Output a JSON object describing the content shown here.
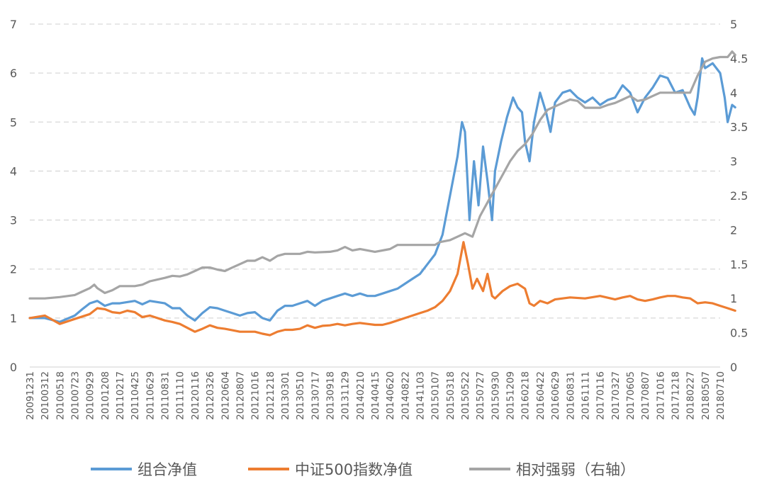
{
  "chart_data": {
    "type": "line",
    "title": "",
    "xlabel": "",
    "ylabel": "",
    "y_left": {
      "min": 0,
      "max": 7,
      "ticks": [
        "0",
        "1",
        "2",
        "3",
        "4",
        "5",
        "6",
        "7"
      ]
    },
    "y_right": {
      "min": 0,
      "max": 5,
      "ticks": [
        "0",
        "0.5",
        "1",
        "1.5",
        "2",
        "2.5",
        "3",
        "3.5",
        "4",
        "4.5",
        "5"
      ]
    },
    "grid": true,
    "legend_position": "bottom",
    "x_tick_labels": [
      "20091231",
      "20100312",
      "20100518",
      "20100723",
      "20100929",
      "20101208",
      "20110217",
      "20110425",
      "20110629",
      "20110831",
      "20111110",
      "20120116",
      "20120326",
      "20120604",
      "20120807",
      "20121016",
      "20121218",
      "20130301",
      "20130510",
      "20130717",
      "20130918",
      "20131129",
      "20140210",
      "20140415",
      "20140620",
      "20140822",
      "20141103",
      "20150107",
      "20150318",
      "20150522",
      "20150727",
      "20150930",
      "20151209",
      "20160218",
      "20160422",
      "20160629",
      "20160831",
      "20161111",
      "20170116",
      "20170327",
      "20170605",
      "20170807",
      "20171016",
      "20171218",
      "20180227",
      "20180507",
      "20180710"
    ],
    "series": [
      {
        "name": "组合净值",
        "axis": "left",
        "color": "#5b9bd5",
        "points": [
          [
            0,
            1.0
          ],
          [
            1,
            1.0
          ],
          [
            2,
            0.92
          ],
          [
            3,
            1.05
          ],
          [
            3.5,
            1.18
          ],
          [
            4,
            1.3
          ],
          [
            4.5,
            1.35
          ],
          [
            5,
            1.25
          ],
          [
            5.5,
            1.3
          ],
          [
            6,
            1.3
          ],
          [
            7,
            1.35
          ],
          [
            7.5,
            1.28
          ],
          [
            8,
            1.35
          ],
          [
            9,
            1.3
          ],
          [
            9.5,
            1.2
          ],
          [
            10,
            1.2
          ],
          [
            10.5,
            1.05
          ],
          [
            11,
            0.95
          ],
          [
            11.5,
            1.1
          ],
          [
            12,
            1.22
          ],
          [
            12.5,
            1.2
          ],
          [
            13,
            1.15
          ],
          [
            13.5,
            1.1
          ],
          [
            14,
            1.05
          ],
          [
            14.5,
            1.1
          ],
          [
            15,
            1.12
          ],
          [
            15.5,
            1.0
          ],
          [
            16,
            0.95
          ],
          [
            16.5,
            1.15
          ],
          [
            17,
            1.25
          ],
          [
            17.5,
            1.25
          ],
          [
            18,
            1.3
          ],
          [
            18.5,
            1.35
          ],
          [
            19,
            1.25
          ],
          [
            19.5,
            1.35
          ],
          [
            20,
            1.4
          ],
          [
            20.5,
            1.45
          ],
          [
            21,
            1.5
          ],
          [
            21.5,
            1.45
          ],
          [
            22,
            1.5
          ],
          [
            22.5,
            1.45
          ],
          [
            23,
            1.45
          ],
          [
            23.5,
            1.5
          ],
          [
            24,
            1.55
          ],
          [
            24.5,
            1.6
          ],
          [
            25,
            1.7
          ],
          [
            25.5,
            1.8
          ],
          [
            26,
            1.9
          ],
          [
            26.5,
            2.1
          ],
          [
            27,
            2.3
          ],
          [
            27.5,
            2.7
          ],
          [
            28,
            3.5
          ],
          [
            28.5,
            4.3
          ],
          [
            28.8,
            5.0
          ],
          [
            29,
            4.8
          ],
          [
            29.3,
            3.0
          ],
          [
            29.6,
            4.2
          ],
          [
            29.9,
            3.3
          ],
          [
            30.2,
            4.5
          ],
          [
            30.5,
            3.8
          ],
          [
            30.8,
            3.0
          ],
          [
            31,
            4.0
          ],
          [
            31.4,
            4.6
          ],
          [
            31.8,
            5.1
          ],
          [
            32.2,
            5.5
          ],
          [
            32.5,
            5.3
          ],
          [
            32.8,
            5.2
          ],
          [
            33,
            4.6
          ],
          [
            33.3,
            4.2
          ],
          [
            33.6,
            5.0
          ],
          [
            34,
            5.6
          ],
          [
            34.4,
            5.2
          ],
          [
            34.7,
            4.8
          ],
          [
            35,
            5.4
          ],
          [
            35.5,
            5.6
          ],
          [
            36,
            5.65
          ],
          [
            36.5,
            5.5
          ],
          [
            37,
            5.4
          ],
          [
            37.5,
            5.5
          ],
          [
            38,
            5.35
          ],
          [
            38.5,
            5.45
          ],
          [
            39,
            5.5
          ],
          [
            39.5,
            5.75
          ],
          [
            40,
            5.6
          ],
          [
            40.5,
            5.2
          ],
          [
            41,
            5.5
          ],
          [
            41.5,
            5.7
          ],
          [
            42,
            5.95
          ],
          [
            42.5,
            5.9
          ],
          [
            43,
            5.6
          ],
          [
            43.5,
            5.65
          ],
          [
            44,
            5.3
          ],
          [
            44.3,
            5.15
          ],
          [
            44.5,
            5.5
          ],
          [
            44.8,
            6.3
          ],
          [
            45,
            6.1
          ],
          [
            45.5,
            6.2
          ],
          [
            46,
            6.0
          ],
          [
            46.3,
            5.5
          ],
          [
            46.5,
            5.0
          ],
          [
            46.8,
            5.35
          ],
          [
            47,
            5.3
          ]
        ]
      },
      {
        "name": "中证500指数净值",
        "axis": "left",
        "color": "#ed7d31",
        "points": [
          [
            0,
            1.0
          ],
          [
            1,
            1.05
          ],
          [
            2,
            0.88
          ],
          [
            3,
            0.98
          ],
          [
            4,
            1.08
          ],
          [
            4.5,
            1.2
          ],
          [
            5,
            1.18
          ],
          [
            5.5,
            1.12
          ],
          [
            6,
            1.1
          ],
          [
            6.5,
            1.15
          ],
          [
            7,
            1.12
          ],
          [
            7.5,
            1.02
          ],
          [
            8,
            1.05
          ],
          [
            9,
            0.95
          ],
          [
            9.5,
            0.92
          ],
          [
            10,
            0.88
          ],
          [
            10.5,
            0.8
          ],
          [
            11,
            0.72
          ],
          [
            11.5,
            0.78
          ],
          [
            12,
            0.85
          ],
          [
            12.5,
            0.8
          ],
          [
            13,
            0.78
          ],
          [
            13.5,
            0.75
          ],
          [
            14,
            0.72
          ],
          [
            14.5,
            0.72
          ],
          [
            15,
            0.72
          ],
          [
            15.5,
            0.68
          ],
          [
            16,
            0.65
          ],
          [
            16.5,
            0.72
          ],
          [
            17,
            0.76
          ],
          [
            17.5,
            0.76
          ],
          [
            18,
            0.78
          ],
          [
            18.5,
            0.85
          ],
          [
            19,
            0.8
          ],
          [
            19.5,
            0.84
          ],
          [
            20,
            0.85
          ],
          [
            20.5,
            0.88
          ],
          [
            21,
            0.85
          ],
          [
            21.5,
            0.88
          ],
          [
            22,
            0.9
          ],
          [
            22.5,
            0.88
          ],
          [
            23,
            0.86
          ],
          [
            23.5,
            0.86
          ],
          [
            24,
            0.9
          ],
          [
            24.5,
            0.95
          ],
          [
            25,
            1.0
          ],
          [
            25.5,
            1.05
          ],
          [
            26,
            1.1
          ],
          [
            26.5,
            1.15
          ],
          [
            27,
            1.22
          ],
          [
            27.5,
            1.35
          ],
          [
            28,
            1.55
          ],
          [
            28.5,
            1.9
          ],
          [
            28.9,
            2.55
          ],
          [
            29.2,
            2.1
          ],
          [
            29.5,
            1.6
          ],
          [
            29.8,
            1.8
          ],
          [
            30.2,
            1.55
          ],
          [
            30.5,
            1.9
          ],
          [
            30.8,
            1.45
          ],
          [
            31,
            1.4
          ],
          [
            31.5,
            1.55
          ],
          [
            32,
            1.65
          ],
          [
            32.5,
            1.7
          ],
          [
            33,
            1.6
          ],
          [
            33.3,
            1.3
          ],
          [
            33.6,
            1.25
          ],
          [
            34,
            1.35
          ],
          [
            34.5,
            1.3
          ],
          [
            35,
            1.38
          ],
          [
            36,
            1.42
          ],
          [
            37,
            1.4
          ],
          [
            38,
            1.45
          ],
          [
            39,
            1.38
          ],
          [
            39.5,
            1.42
          ],
          [
            40,
            1.45
          ],
          [
            40.5,
            1.38
          ],
          [
            41,
            1.35
          ],
          [
            41.5,
            1.38
          ],
          [
            42,
            1.42
          ],
          [
            42.5,
            1.45
          ],
          [
            43,
            1.45
          ],
          [
            43.5,
            1.42
          ],
          [
            44,
            1.4
          ],
          [
            44.5,
            1.3
          ],
          [
            45,
            1.32
          ],
          [
            45.5,
            1.3
          ],
          [
            46,
            1.25
          ],
          [
            46.5,
            1.2
          ],
          [
            47,
            1.15
          ]
        ]
      },
      {
        "name": "相对强弱（右轴）",
        "axis": "right",
        "color": "#a5a5a5",
        "points": [
          [
            0,
            1.0
          ],
          [
            1,
            1.0
          ],
          [
            2,
            1.02
          ],
          [
            3,
            1.05
          ],
          [
            3.5,
            1.1
          ],
          [
            4,
            1.15
          ],
          [
            4.3,
            1.2
          ],
          [
            4.5,
            1.15
          ],
          [
            5,
            1.08
          ],
          [
            5.5,
            1.12
          ],
          [
            6,
            1.18
          ],
          [
            7,
            1.18
          ],
          [
            7.5,
            1.2
          ],
          [
            8,
            1.25
          ],
          [
            9,
            1.3
          ],
          [
            9.5,
            1.33
          ],
          [
            10,
            1.32
          ],
          [
            10.5,
            1.35
          ],
          [
            11,
            1.4
          ],
          [
            11.5,
            1.45
          ],
          [
            12,
            1.45
          ],
          [
            12.5,
            1.42
          ],
          [
            13,
            1.4
          ],
          [
            13.5,
            1.45
          ],
          [
            14,
            1.5
          ],
          [
            14.5,
            1.55
          ],
          [
            15,
            1.55
          ],
          [
            15.5,
            1.6
          ],
          [
            16,
            1.55
          ],
          [
            16.5,
            1.62
          ],
          [
            17,
            1.65
          ],
          [
            18,
            1.65
          ],
          [
            18.5,
            1.68
          ],
          [
            19,
            1.67
          ],
          [
            20,
            1.68
          ],
          [
            20.5,
            1.7
          ],
          [
            21,
            1.75
          ],
          [
            21.5,
            1.7
          ],
          [
            22,
            1.72
          ],
          [
            22.5,
            1.7
          ],
          [
            23,
            1.68
          ],
          [
            24,
            1.72
          ],
          [
            24.5,
            1.78
          ],
          [
            25,
            1.78
          ],
          [
            26,
            1.78
          ],
          [
            27,
            1.78
          ],
          [
            27.3,
            1.82
          ],
          [
            28,
            1.85
          ],
          [
            28.5,
            1.9
          ],
          [
            29,
            1.95
          ],
          [
            29.5,
            1.9
          ],
          [
            30,
            2.2
          ],
          [
            30.5,
            2.4
          ],
          [
            31,
            2.6
          ],
          [
            31.5,
            2.8
          ],
          [
            32,
            3.0
          ],
          [
            32.5,
            3.15
          ],
          [
            33,
            3.25
          ],
          [
            33.5,
            3.4
          ],
          [
            34,
            3.6
          ],
          [
            34.5,
            3.75
          ],
          [
            35,
            3.8
          ],
          [
            35.5,
            3.85
          ],
          [
            36,
            3.9
          ],
          [
            36.5,
            3.88
          ],
          [
            37,
            3.78
          ],
          [
            38,
            3.78
          ],
          [
            38.5,
            3.82
          ],
          [
            39,
            3.85
          ],
          [
            39.5,
            3.9
          ],
          [
            40,
            3.95
          ],
          [
            40.5,
            3.88
          ],
          [
            41,
            3.9
          ],
          [
            41.5,
            3.95
          ],
          [
            42,
            4.0
          ],
          [
            43,
            4.0
          ],
          [
            43.5,
            4.0
          ],
          [
            44,
            4.0
          ],
          [
            44.5,
            4.25
          ],
          [
            45,
            4.45
          ],
          [
            45.5,
            4.5
          ],
          [
            46,
            4.52
          ],
          [
            46.5,
            4.52
          ],
          [
            46.8,
            4.6
          ],
          [
            47,
            4.55
          ]
        ]
      }
    ]
  }
}
